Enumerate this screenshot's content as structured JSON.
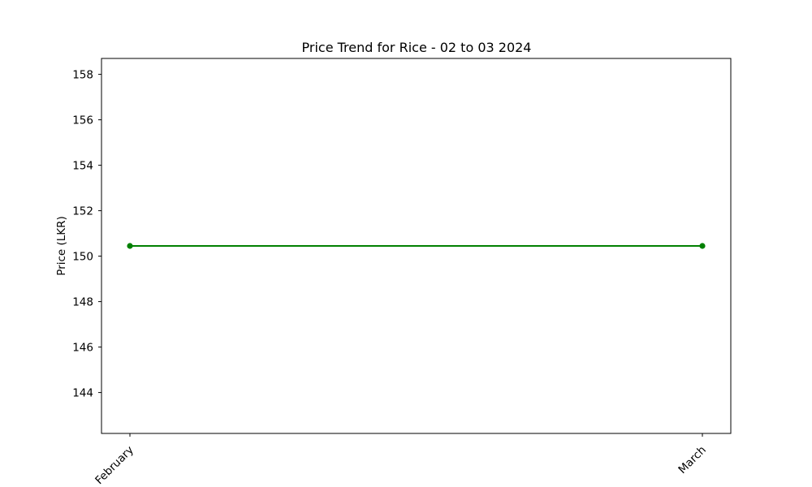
{
  "chart_data": {
    "type": "line",
    "title": "Price Trend for Rice - 02 to 03 2024",
    "xlabel": "",
    "ylabel": "Price (LKR)",
    "categories": [
      "February",
      "March"
    ],
    "series": [
      {
        "values": [
          150.45,
          150.45
        ],
        "color": "#008000",
        "marker": "circle"
      }
    ],
    "ylim": [
      142.2,
      158.7
    ],
    "yticks": [
      144,
      146,
      148,
      150,
      152,
      154,
      156,
      158
    ],
    "grid": false
  }
}
